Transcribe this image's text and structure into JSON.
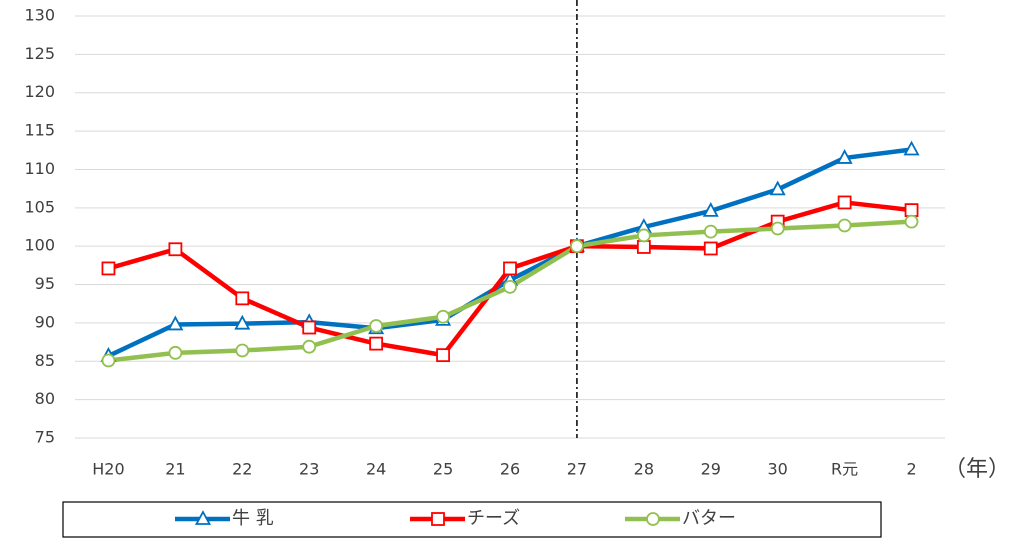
{
  "chart_data": {
    "type": "line",
    "categories": [
      "H20",
      "21",
      "22",
      "23",
      "24",
      "25",
      "26",
      "27",
      "28",
      "29",
      "30",
      "R元",
      "2"
    ],
    "x_unit": "（年）",
    "reference_line": "27",
    "series": [
      {
        "name": "牛 乳",
        "color": "#0070c0",
        "marker": "triangle",
        "values": [
          85.7,
          89.8,
          89.9,
          90.1,
          89.3,
          90.4,
          95.6,
          100,
          102.5,
          104.6,
          107.4,
          111.5,
          112.6
        ]
      },
      {
        "name": "チーズ",
        "color": "#ff0000",
        "marker": "square",
        "values": [
          97.1,
          99.6,
          93.2,
          89.4,
          87.3,
          85.8,
          97.1,
          100,
          99.9,
          99.7,
          103.2,
          105.7,
          104.7
        ]
      },
      {
        "name": "バター",
        "color": "#92c050",
        "marker": "circle",
        "values": [
          85.1,
          86.1,
          86.4,
          86.9,
          89.6,
          90.8,
          94.7,
          100,
          101.4,
          101.9,
          102.3,
          102.7,
          103.2
        ]
      }
    ],
    "ylim": [
      75,
      130
    ],
    "yticks": [
      75,
      80,
      85,
      90,
      95,
      100,
      105,
      110,
      115,
      120,
      125,
      130
    ],
    "grid": true
  }
}
